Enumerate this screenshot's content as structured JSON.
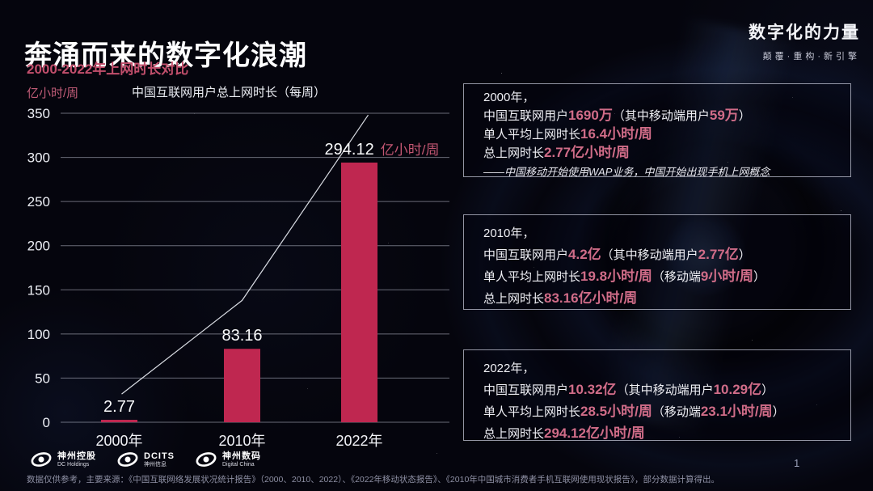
{
  "slide": {
    "title": "奔涌而来的数字化浪潮",
    "subtitle": "2000-2022年上网时长对比",
    "page_number": "1"
  },
  "brand": {
    "name": "数字化的力量",
    "tagline": "颠覆·重构·新引擎"
  },
  "chart_data": {
    "type": "bar",
    "title": "中国互联网用户总上网时长（每周）",
    "unit_label": "亿小时/周",
    "categories": [
      "2000年",
      "2010年",
      "2022年"
    ],
    "values": [
      2.77,
      83.16,
      294.12
    ],
    "value_labels": [
      "2.77",
      "83.16",
      "294.12"
    ],
    "last_value_unit": "亿小时/周",
    "ylim": [
      0,
      350
    ],
    "yticks": [
      0,
      50,
      100,
      150,
      200,
      250,
      300,
      350
    ],
    "grid": true,
    "legend": "none",
    "bar_color": "#bf2750",
    "trend_line_values": [
      32,
      138,
      348
    ],
    "colors": {
      "grid": "rgba(205,210,225,0.5)",
      "trend": "rgba(240,243,250,0.9)",
      "tick_text": "#eef0f6",
      "value_text": "#fafbfd",
      "unit_text": "#c25672"
    }
  },
  "panels": [
    {
      "lines": [
        [
          {
            "t": "2000年，",
            "hl": false
          }
        ],
        [
          {
            "t": "中国互联网用户",
            "hl": false
          },
          {
            "t": "1690万",
            "hl": true
          },
          {
            "t": "（其中移动端用户",
            "hl": false
          },
          {
            "t": "59万",
            "hl": true
          },
          {
            "t": "）",
            "hl": false
          }
        ],
        [
          {
            "t": "单人平均上网时长",
            "hl": false
          },
          {
            "t": "16.4小时/周",
            "hl": true
          }
        ],
        [
          {
            "t": "总上网时长",
            "hl": false
          },
          {
            "t": "2.77亿小时/周",
            "hl": true
          }
        ]
      ],
      "note": "——中国移动开始使用WAP业务，中国开始出现手机上网概念"
    },
    {
      "lines": [
        [
          {
            "t": "2010年，",
            "hl": false
          }
        ],
        [
          {
            "t": "中国互联网用户",
            "hl": false
          },
          {
            "t": "4.2亿",
            "hl": true
          },
          {
            "t": "（其中移动端用户",
            "hl": false
          },
          {
            "t": "2.77亿",
            "hl": true
          },
          {
            "t": "）",
            "hl": false
          }
        ],
        [
          {
            "t": "单人平均上网时长",
            "hl": false
          },
          {
            "t": "19.8小时/周",
            "hl": true
          },
          {
            "t": "（移动端",
            "hl": false
          },
          {
            "t": "9小时/周",
            "hl": true
          },
          {
            "t": "）",
            "hl": false
          }
        ],
        [
          {
            "t": "总上网时长",
            "hl": false
          },
          {
            "t": "83.16亿小时/周",
            "hl": true
          }
        ]
      ],
      "note": ""
    },
    {
      "lines": [
        [
          {
            "t": "2022年，",
            "hl": false
          }
        ],
        [
          {
            "t": "中国互联网用户",
            "hl": false
          },
          {
            "t": "10.32亿",
            "hl": true
          },
          {
            "t": "（其中移动端用户",
            "hl": false
          },
          {
            "t": "10.29亿",
            "hl": true
          },
          {
            "t": "）",
            "hl": false
          }
        ],
        [
          {
            "t": "单人平均上网时长",
            "hl": false
          },
          {
            "t": "28.5小时/周",
            "hl": true
          },
          {
            "t": "（移动端",
            "hl": false
          },
          {
            "t": "23.1小时/周",
            "hl": true
          },
          {
            "t": "）",
            "hl": false
          }
        ],
        [
          {
            "t": "总上网时长",
            "hl": false
          },
          {
            "t": "294.12亿小时/周",
            "hl": true
          }
        ]
      ],
      "note": ""
    }
  ],
  "footer": {
    "logos": [
      {
        "name": "神州控股",
        "sub": "DC Holdings"
      },
      {
        "name": "DCITS",
        "sub": "神州信息"
      },
      {
        "name": "神州数码",
        "sub": "Digital China"
      }
    ],
    "source": "数据仅供参考，主要来源：《中国互联网络发展状况统计报告》（2000、2010、2022）、《2022年移动状态报告》、《2010年中国城市消费者手机互联网使用现状报告》，部分数据计算得出。"
  }
}
